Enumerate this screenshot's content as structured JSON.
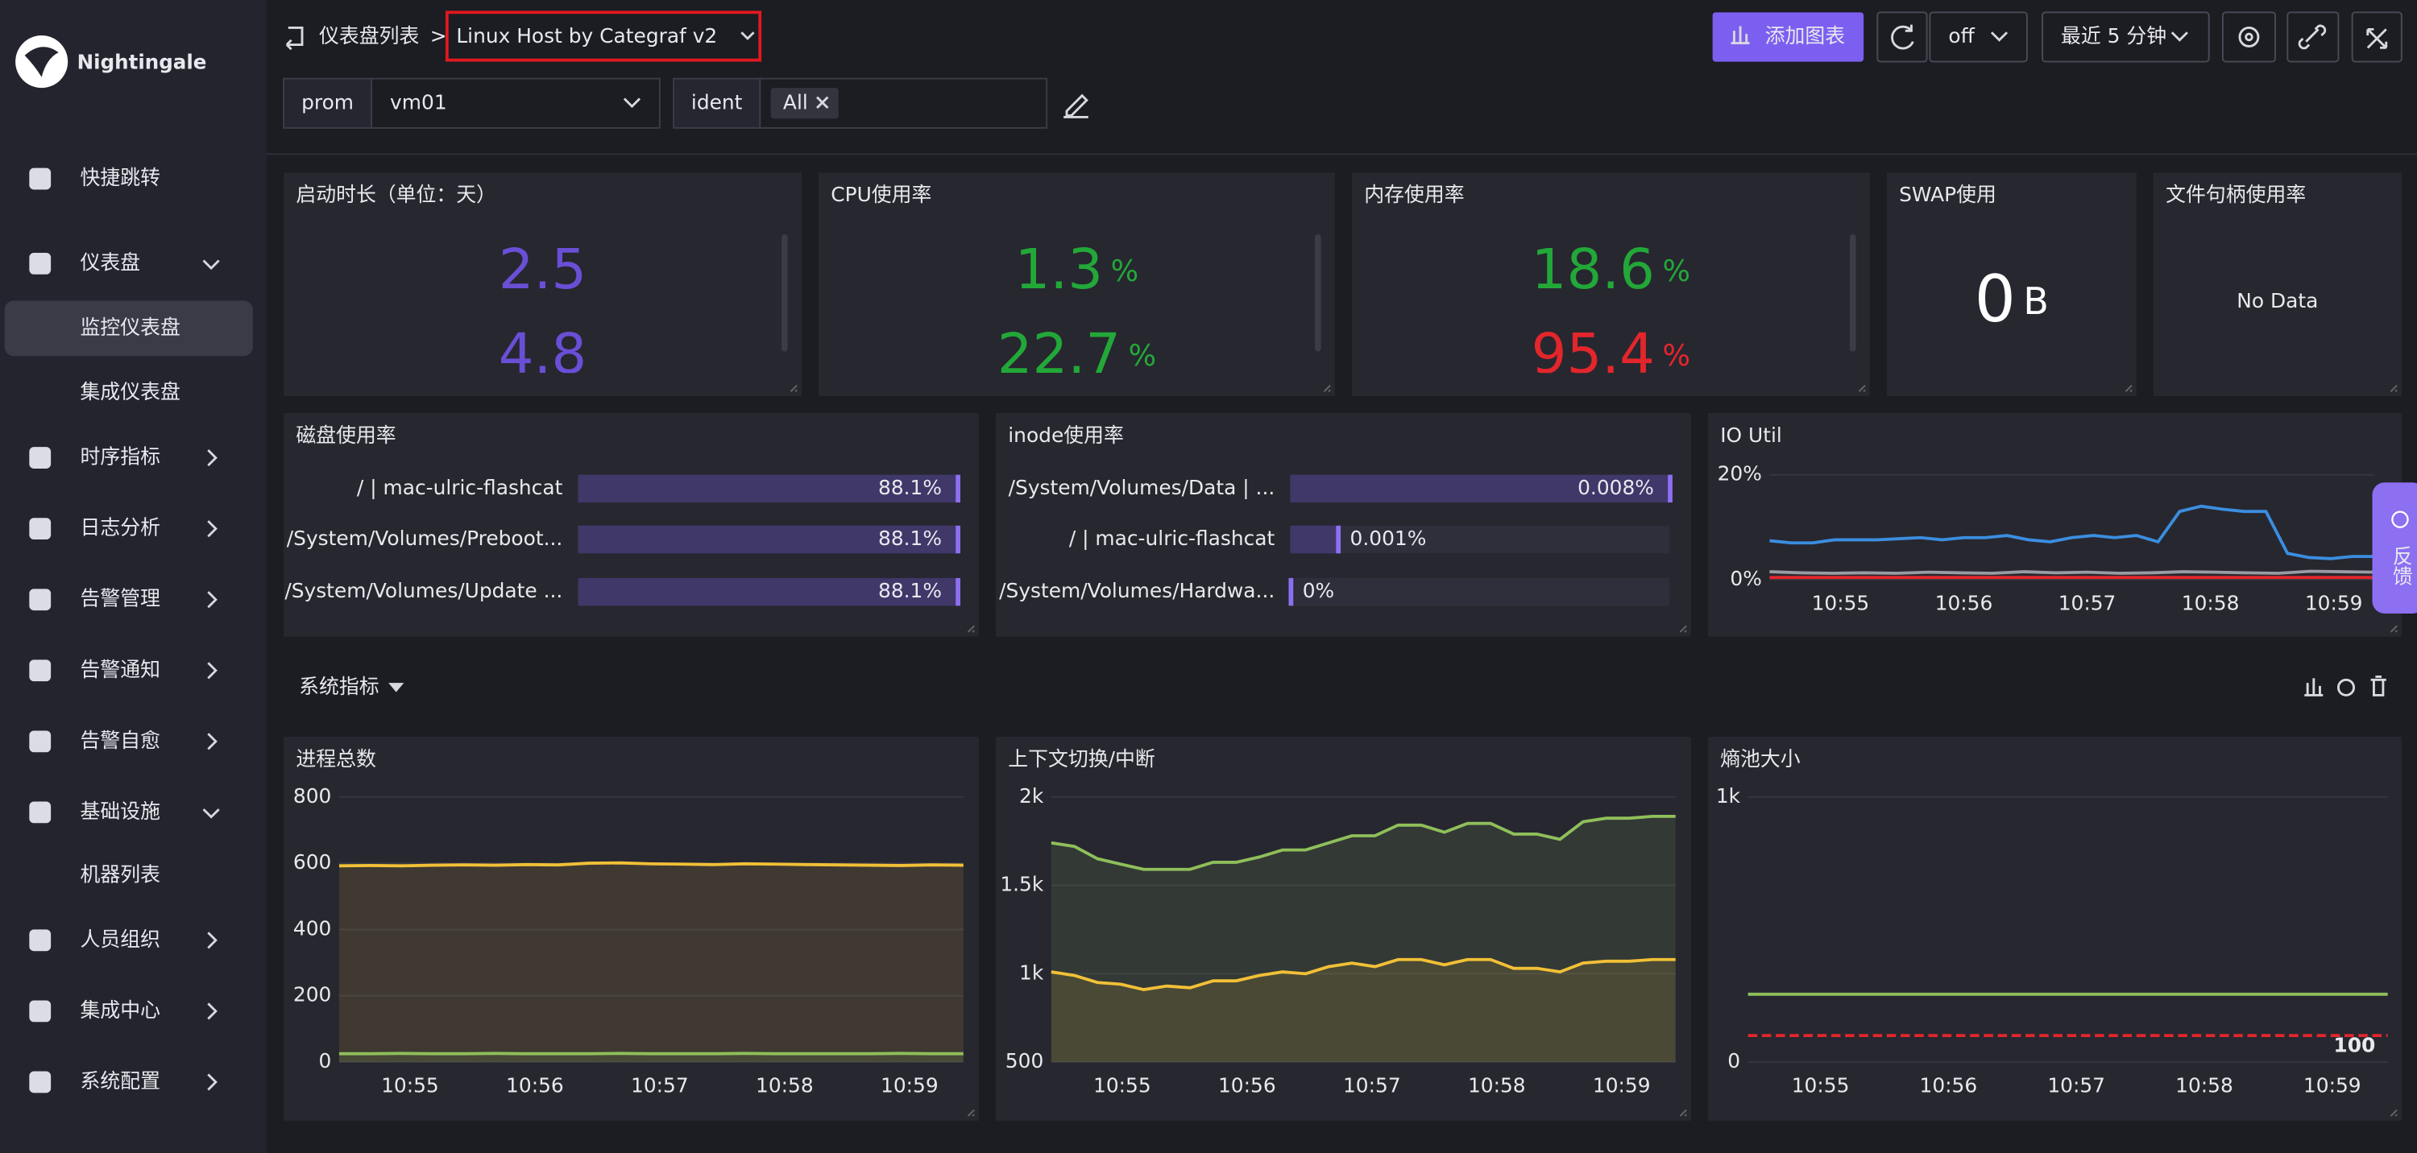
{
  "sidebar": {
    "logo": "Nightingale",
    "menu": [
      {
        "label": "快捷跳转"
      },
      {
        "label": "仪表盘",
        "children": [
          {
            "label": "监控仪表盘",
            "active": true
          },
          {
            "label": "集成仪表盘"
          }
        ]
      },
      {
        "label": "时序指标"
      },
      {
        "label": "日志分析"
      },
      {
        "label": "告警管理"
      },
      {
        "label": "告警通知"
      },
      {
        "label": "告警自愈"
      },
      {
        "label": "基础设施",
        "children": [
          {
            "label": "机器列表"
          }
        ]
      },
      {
        "label": "人员组织"
      },
      {
        "label": "集成中心"
      },
      {
        "label": "系统配置"
      }
    ]
  },
  "header": {
    "breadcrumb": "仪表盘列表",
    "separator": ">",
    "title": "Linux Host by Categraf v2",
    "add_button": "添加图表",
    "refresh": "off",
    "time_range": "最近 5 分钟"
  },
  "filters": [
    {
      "label": "prom",
      "value": "vm01"
    },
    {
      "label": "ident",
      "value": "All"
    }
  ],
  "row_title": "系统指标",
  "feedback": "反馈",
  "stat_panels": [
    {
      "title": "启动时长（单位：天）",
      "values": [
        2.5,
        4.8
      ],
      "colors": [
        "#6a4fd6",
        "#6a4fd6"
      ]
    },
    {
      "title": "CPU使用率",
      "values": [
        1.3,
        22.7
      ],
      "unit": "%",
      "colors": [
        "#22a838",
        "#22a838"
      ]
    },
    {
      "title": "内存使用率",
      "values": [
        18.6,
        95.4
      ],
      "unit": "%",
      "colors": [
        "#22a838",
        "#e3262b"
      ]
    },
    {
      "title": "SWAP使用",
      "values": [
        0
      ],
      "unit": "B",
      "colors": [
        "#ffffff"
      ]
    },
    {
      "title": "文件句柄使用率",
      "no_data": "No Data"
    }
  ],
  "bar_panels": [
    {
      "title": "磁盘使用率",
      "categories": [
        "/ | mac-ulric-flashcat",
        "/System/Volumes/Preboot...",
        "/System/Volumes/Update ..."
      ],
      "values": [
        88.1,
        88.1,
        88.1
      ],
      "value_labels": [
        "88.1%",
        "88.1%",
        "88.1%"
      ]
    },
    {
      "title": "inode使用率",
      "categories": [
        "/System/Volumes/Data | ...",
        "/ | mac-ulric-flashcat",
        "/System/Volumes/Hardwa..."
      ],
      "values": [
        0.008,
        0.001,
        0
      ],
      "value_labels": [
        "0.008%",
        "0.001%",
        "0%"
      ]
    }
  ],
  "chart_data": [
    {
      "type": "line",
      "title": "IO Util",
      "ylim": [
        0,
        20
      ],
      "yticks": [
        {
          "value": 0,
          "label": "0%"
        },
        {
          "value": 20,
          "label": "20%"
        }
      ],
      "xticks": [
        "10:55",
        "10:56",
        "10:57",
        "10:58",
        "10:59"
      ],
      "grid": true,
      "series": [
        {
          "color": "#3b8ee0",
          "values": [
            7.4,
            7,
            7,
            7.6,
            7.6,
            7.6,
            7.8,
            8,
            7.6,
            8,
            8,
            8.4,
            7.6,
            7.2,
            8,
            8.4,
            8,
            8.4,
            7.2,
            13,
            14,
            13.4,
            13,
            13,
            5,
            4.2,
            4,
            4.4,
            4.4
          ]
        },
        {
          "color": "#9a9aa4",
          "values": [
            1.5,
            1.3,
            1.2,
            1.3,
            1.2,
            1.4,
            1.3,
            1.2,
            1.5,
            1.3,
            1.4,
            1.2,
            1.3,
            1.5,
            1.4,
            1.3,
            1.2,
            1.6,
            1.5,
            1.4
          ]
        },
        {
          "color": "#e3262b",
          "values": [
            0.4,
            0.4,
            0.4,
            0.4,
            0.4,
            0.4,
            0.4,
            0.4,
            0.4,
            0.4
          ]
        }
      ]
    },
    {
      "type": "area",
      "title": "进程总数",
      "ylim": [
        0,
        800
      ],
      "yticks": [
        0,
        200,
        400,
        600,
        800
      ],
      "xticks": [
        "10:55",
        "10:56",
        "10:57",
        "10:58",
        "10:59"
      ],
      "grid": true,
      "series": [
        {
          "color": "#f2c037",
          "values": [
            592,
            593,
            592,
            594,
            595,
            594,
            596,
            595,
            600,
            601,
            598,
            597,
            596,
            598,
            597,
            596,
            595,
            594,
            593,
            595,
            594
          ]
        },
        {
          "color": "#8fbf5a",
          "values": [
            25,
            25,
            26,
            25,
            25,
            26,
            25,
            25,
            25,
            26,
            25,
            25,
            25,
            26,
            25,
            25,
            25,
            25,
            26,
            25,
            25
          ]
        }
      ]
    },
    {
      "type": "area",
      "title": "上下文切换/中断",
      "ylim": [
        500,
        2000
      ],
      "yticks": [
        500,
        {
          "value": 1000,
          "label": "1k"
        },
        {
          "value": 1500,
          "label": "1.5k"
        },
        {
          "value": 2000,
          "label": "2k"
        }
      ],
      "xticks": [
        "10:55",
        "10:56",
        "10:57",
        "10:58",
        "10:59"
      ],
      "grid": true,
      "series": [
        {
          "color": "#8fbf5a",
          "values": [
            1740,
            1720,
            1650,
            1620,
            1590,
            1590,
            1590,
            1630,
            1630,
            1660,
            1700,
            1700,
            1740,
            1780,
            1780,
            1840,
            1840,
            1800,
            1850,
            1850,
            1790,
            1790,
            1760,
            1860,
            1880,
            1880,
            1890,
            1890
          ]
        },
        {
          "color": "#f2c037",
          "values": [
            1010,
            990,
            950,
            940,
            910,
            930,
            920,
            960,
            960,
            990,
            1010,
            1000,
            1040,
            1060,
            1040,
            1080,
            1080,
            1050,
            1080,
            1080,
            1030,
            1030,
            1010,
            1060,
            1070,
            1070,
            1080,
            1080
          ]
        }
      ]
    },
    {
      "type": "line",
      "title": "熵池大小",
      "ylim": [
        0,
        1000
      ],
      "yticks": [
        0,
        {
          "value": 1000,
          "label": "1k"
        }
      ],
      "xticks": [
        "10:55",
        "10:56",
        "10:57",
        "10:58",
        "10:59"
      ],
      "grid": true,
      "threshold": {
        "value": 100,
        "color": "#e3262b"
      },
      "series": [
        {
          "color": "#8fbf5a",
          "values": [
            256,
            256,
            256,
            256,
            256,
            256,
            256,
            256,
            256,
            256
          ]
        }
      ]
    }
  ]
}
